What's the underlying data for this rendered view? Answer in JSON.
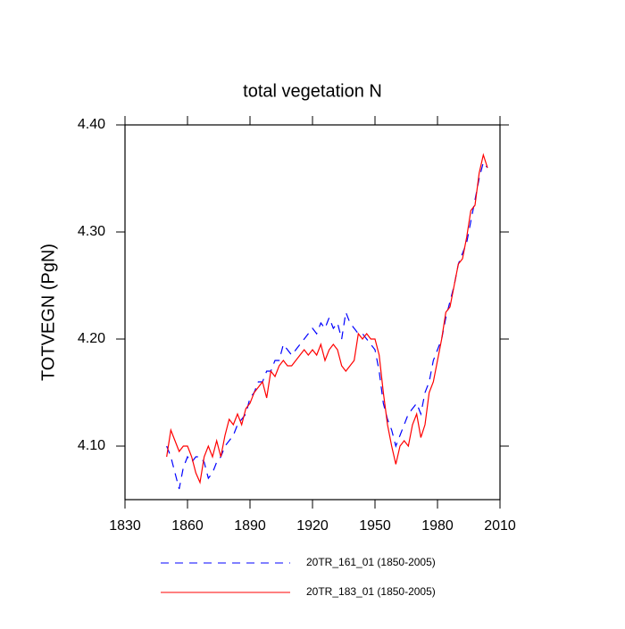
{
  "chart_data": {
    "type": "line",
    "title": "total vegetation N",
    "y_label": "TOTVEGN  (PgN)",
    "x": [
      1850,
      1852,
      1854,
      1856,
      1858,
      1860,
      1862,
      1864,
      1866,
      1868,
      1870,
      1872,
      1874,
      1876,
      1878,
      1880,
      1882,
      1884,
      1886,
      1888,
      1890,
      1892,
      1894,
      1896,
      1898,
      1900,
      1902,
      1904,
      1906,
      1908,
      1910,
      1912,
      1914,
      1916,
      1918,
      1920,
      1922,
      1924,
      1926,
      1928,
      1930,
      1932,
      1934,
      1936,
      1938,
      1940,
      1942,
      1944,
      1946,
      1948,
      1950,
      1952,
      1954,
      1956,
      1958,
      1960,
      1962,
      1964,
      1966,
      1968,
      1970,
      1972,
      1974,
      1976,
      1978,
      1980,
      1982,
      1984,
      1986,
      1988,
      1990,
      1992,
      1994,
      1996,
      1998,
      2000,
      2002,
      2004
    ],
    "series": [
      {
        "name": "20TR_161_01 (1850-2005)",
        "color": "#0000ff",
        "line_style": "dashed",
        "values": [
          4.1,
          4.09,
          4.075,
          4.06,
          4.08,
          4.09,
          4.085,
          4.09,
          4.09,
          4.085,
          4.07,
          4.075,
          4.085,
          4.09,
          4.1,
          4.105,
          4.11,
          4.12,
          4.125,
          4.13,
          4.145,
          4.15,
          4.16,
          4.16,
          4.17,
          4.17,
          4.18,
          4.18,
          4.195,
          4.19,
          4.185,
          4.19,
          4.195,
          4.2,
          4.205,
          4.21,
          4.205,
          4.215,
          4.21,
          4.22,
          4.21,
          4.215,
          4.2,
          4.225,
          4.215,
          4.21,
          4.205,
          4.205,
          4.2,
          4.195,
          4.19,
          4.17,
          4.14,
          4.125,
          4.115,
          4.1,
          4.11,
          4.12,
          4.13,
          4.135,
          4.14,
          4.13,
          4.15,
          4.16,
          4.18,
          4.19,
          4.2,
          4.22,
          4.235,
          4.25,
          4.27,
          4.28,
          4.29,
          4.31,
          4.33,
          4.35,
          4.365,
          4.36
        ]
      },
      {
        "name": "20TR_183_01 (1850-2005)",
        "color": "#ff0000",
        "line_style": "solid",
        "values": [
          4.09,
          4.115,
          4.105,
          4.095,
          4.1,
          4.1,
          4.09,
          4.075,
          4.066,
          4.09,
          4.1,
          4.09,
          4.105,
          4.09,
          4.11,
          4.125,
          4.12,
          4.13,
          4.12,
          4.135,
          4.14,
          4.15,
          4.155,
          4.16,
          4.145,
          4.17,
          4.165,
          4.175,
          4.18,
          4.175,
          4.175,
          4.18,
          4.185,
          4.19,
          4.185,
          4.19,
          4.185,
          4.195,
          4.18,
          4.19,
          4.195,
          4.19,
          4.175,
          4.17,
          4.175,
          4.18,
          4.205,
          4.2,
          4.205,
          4.2,
          4.2,
          4.185,
          4.15,
          4.12,
          4.1,
          4.083,
          4.1,
          4.105,
          4.1,
          4.12,
          4.13,
          4.108,
          4.12,
          4.15,
          4.16,
          4.18,
          4.2,
          4.225,
          4.23,
          4.25,
          4.27,
          4.275,
          4.295,
          4.32,
          4.325,
          4.355,
          4.372,
          4.36
        ]
      }
    ],
    "xlim": [
      1830,
      2010
    ],
    "xticks": [
      1830,
      1860,
      1890,
      1920,
      1950,
      1980,
      2010
    ],
    "ylim": [
      4.05,
      4.4
    ],
    "yticks": [
      {
        "value": 4.1,
        "label": "4.10"
      },
      {
        "value": 4.2,
        "label": "4.20"
      },
      {
        "value": 4.3,
        "label": "4.30"
      },
      {
        "value": 4.4,
        "label": "4.40"
      }
    ],
    "legend": "bottom"
  }
}
